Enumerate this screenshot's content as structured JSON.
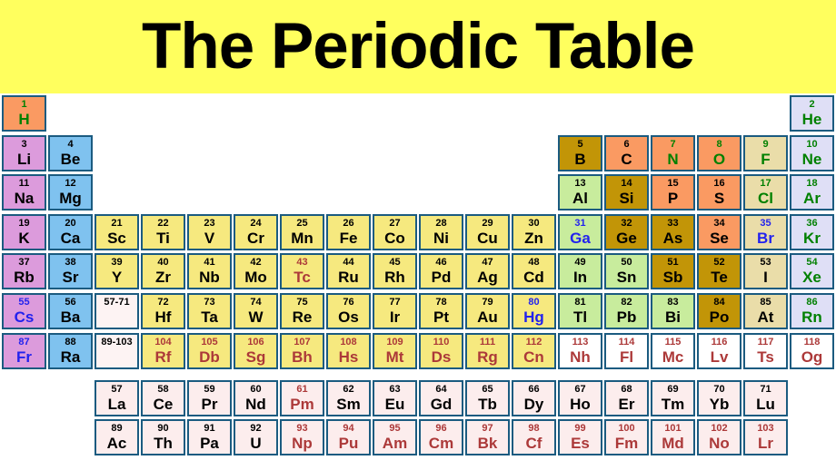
{
  "title": "The Periodic Table",
  "colors": {
    "banner_bg": "#FFFF5E",
    "border": "#1B5B80",
    "categories": {
      "alkali": "#DC9BDC",
      "alkaline": "#7FC2EF",
      "transition": "#F6E97F",
      "post": "#C8EC9D",
      "metalloid": "#C29507",
      "nonmetal": "#FA9A62",
      "halogen": "#EADDA9",
      "noble": "#DFDFF6",
      "fblock": "#FCEDED",
      "range": "#FDF3F3",
      "white": "#FFFFFF"
    },
    "text": {
      "black": "#000000",
      "green": "#008000",
      "blue": "#2222EE",
      "crimson": "#AC3939"
    }
  },
  "elements": [
    {
      "n": 1,
      "s": "H",
      "p": 1,
      "g": 1,
      "bg": "nonmetal",
      "fg": "green"
    },
    {
      "n": 2,
      "s": "He",
      "p": 1,
      "g": 18,
      "bg": "noble",
      "fg": "green"
    },
    {
      "n": 3,
      "s": "Li",
      "p": 2,
      "g": 1,
      "bg": "alkali",
      "fg": "black"
    },
    {
      "n": 4,
      "s": "Be",
      "p": 2,
      "g": 2,
      "bg": "alkaline",
      "fg": "black"
    },
    {
      "n": 5,
      "s": "B",
      "p": 2,
      "g": 13,
      "bg": "metalloid",
      "fg": "black"
    },
    {
      "n": 6,
      "s": "C",
      "p": 2,
      "g": 14,
      "bg": "nonmetal",
      "fg": "black"
    },
    {
      "n": 7,
      "s": "N",
      "p": 2,
      "g": 15,
      "bg": "nonmetal",
      "fg": "green"
    },
    {
      "n": 8,
      "s": "O",
      "p": 2,
      "g": 16,
      "bg": "nonmetal",
      "fg": "green"
    },
    {
      "n": 9,
      "s": "F",
      "p": 2,
      "g": 17,
      "bg": "halogen",
      "fg": "green"
    },
    {
      "n": 10,
      "s": "Ne",
      "p": 2,
      "g": 18,
      "bg": "noble",
      "fg": "green"
    },
    {
      "n": 11,
      "s": "Na",
      "p": 3,
      "g": 1,
      "bg": "alkali",
      "fg": "black"
    },
    {
      "n": 12,
      "s": "Mg",
      "p": 3,
      "g": 2,
      "bg": "alkaline",
      "fg": "black"
    },
    {
      "n": 13,
      "s": "Al",
      "p": 3,
      "g": 13,
      "bg": "post",
      "fg": "black"
    },
    {
      "n": 14,
      "s": "Si",
      "p": 3,
      "g": 14,
      "bg": "metalloid",
      "fg": "black"
    },
    {
      "n": 15,
      "s": "P",
      "p": 3,
      "g": 15,
      "bg": "nonmetal",
      "fg": "black"
    },
    {
      "n": 16,
      "s": "S",
      "p": 3,
      "g": 16,
      "bg": "nonmetal",
      "fg": "black"
    },
    {
      "n": 17,
      "s": "Cl",
      "p": 3,
      "g": 17,
      "bg": "halogen",
      "fg": "green"
    },
    {
      "n": 18,
      "s": "Ar",
      "p": 3,
      "g": 18,
      "bg": "noble",
      "fg": "green"
    },
    {
      "n": 19,
      "s": "K",
      "p": 4,
      "g": 1,
      "bg": "alkali",
      "fg": "black"
    },
    {
      "n": 20,
      "s": "Ca",
      "p": 4,
      "g": 2,
      "bg": "alkaline",
      "fg": "black"
    },
    {
      "n": 21,
      "s": "Sc",
      "p": 4,
      "g": 3,
      "bg": "transition",
      "fg": "black"
    },
    {
      "n": 22,
      "s": "Ti",
      "p": 4,
      "g": 4,
      "bg": "transition",
      "fg": "black"
    },
    {
      "n": 23,
      "s": "V",
      "p": 4,
      "g": 5,
      "bg": "transition",
      "fg": "black"
    },
    {
      "n": 24,
      "s": "Cr",
      "p": 4,
      "g": 6,
      "bg": "transition",
      "fg": "black"
    },
    {
      "n": 25,
      "s": "Mn",
      "p": 4,
      "g": 7,
      "bg": "transition",
      "fg": "black"
    },
    {
      "n": 26,
      "s": "Fe",
      "p": 4,
      "g": 8,
      "bg": "transition",
      "fg": "black"
    },
    {
      "n": 27,
      "s": "Co",
      "p": 4,
      "g": 9,
      "bg": "transition",
      "fg": "black"
    },
    {
      "n": 28,
      "s": "Ni",
      "p": 4,
      "g": 10,
      "bg": "transition",
      "fg": "black"
    },
    {
      "n": 29,
      "s": "Cu",
      "p": 4,
      "g": 11,
      "bg": "transition",
      "fg": "black"
    },
    {
      "n": 30,
      "s": "Zn",
      "p": 4,
      "g": 12,
      "bg": "transition",
      "fg": "black"
    },
    {
      "n": 31,
      "s": "Ga",
      "p": 4,
      "g": 13,
      "bg": "post",
      "fg": "blue"
    },
    {
      "n": 32,
      "s": "Ge",
      "p": 4,
      "g": 14,
      "bg": "metalloid",
      "fg": "black"
    },
    {
      "n": 33,
      "s": "As",
      "p": 4,
      "g": 15,
      "bg": "metalloid",
      "fg": "black"
    },
    {
      "n": 34,
      "s": "Se",
      "p": 4,
      "g": 16,
      "bg": "nonmetal",
      "fg": "black"
    },
    {
      "n": 35,
      "s": "Br",
      "p": 4,
      "g": 17,
      "bg": "halogen",
      "fg": "blue"
    },
    {
      "n": 36,
      "s": "Kr",
      "p": 4,
      "g": 18,
      "bg": "noble",
      "fg": "green"
    },
    {
      "n": 37,
      "s": "Rb",
      "p": 5,
      "g": 1,
      "bg": "alkali",
      "fg": "black"
    },
    {
      "n": 38,
      "s": "Sr",
      "p": 5,
      "g": 2,
      "bg": "alkaline",
      "fg": "black"
    },
    {
      "n": 39,
      "s": "Y",
      "p": 5,
      "g": 3,
      "bg": "transition",
      "fg": "black"
    },
    {
      "n": 40,
      "s": "Zr",
      "p": 5,
      "g": 4,
      "bg": "transition",
      "fg": "black"
    },
    {
      "n": 41,
      "s": "Nb",
      "p": 5,
      "g": 5,
      "bg": "transition",
      "fg": "black"
    },
    {
      "n": 42,
      "s": "Mo",
      "p": 5,
      "g": 6,
      "bg": "transition",
      "fg": "black"
    },
    {
      "n": 43,
      "s": "Tc",
      "p": 5,
      "g": 7,
      "bg": "transition",
      "fg": "crimson"
    },
    {
      "n": 44,
      "s": "Ru",
      "p": 5,
      "g": 8,
      "bg": "transition",
      "fg": "black"
    },
    {
      "n": 45,
      "s": "Rh",
      "p": 5,
      "g": 9,
      "bg": "transition",
      "fg": "black"
    },
    {
      "n": 46,
      "s": "Pd",
      "p": 5,
      "g": 10,
      "bg": "transition",
      "fg": "black"
    },
    {
      "n": 47,
      "s": "Ag",
      "p": 5,
      "g": 11,
      "bg": "transition",
      "fg": "black"
    },
    {
      "n": 48,
      "s": "Cd",
      "p": 5,
      "g": 12,
      "bg": "transition",
      "fg": "black"
    },
    {
      "n": 49,
      "s": "In",
      "p": 5,
      "g": 13,
      "bg": "post",
      "fg": "black"
    },
    {
      "n": 50,
      "s": "Sn",
      "p": 5,
      "g": 14,
      "bg": "post",
      "fg": "black"
    },
    {
      "n": 51,
      "s": "Sb",
      "p": 5,
      "g": 15,
      "bg": "metalloid",
      "fg": "black"
    },
    {
      "n": 52,
      "s": "Te",
      "p": 5,
      "g": 16,
      "bg": "metalloid",
      "fg": "black"
    },
    {
      "n": 53,
      "s": "I",
      "p": 5,
      "g": 17,
      "bg": "halogen",
      "fg": "black"
    },
    {
      "n": 54,
      "s": "Xe",
      "p": 5,
      "g": 18,
      "bg": "noble",
      "fg": "green"
    },
    {
      "n": 55,
      "s": "Cs",
      "p": 6,
      "g": 1,
      "bg": "alkali",
      "fg": "blue"
    },
    {
      "n": 56,
      "s": "Ba",
      "p": 6,
      "g": 2,
      "bg": "alkaline",
      "fg": "black"
    },
    {
      "n": 72,
      "s": "Hf",
      "p": 6,
      "g": 4,
      "bg": "transition",
      "fg": "black"
    },
    {
      "n": 73,
      "s": "Ta",
      "p": 6,
      "g": 5,
      "bg": "transition",
      "fg": "black"
    },
    {
      "n": 74,
      "s": "W",
      "p": 6,
      "g": 6,
      "bg": "transition",
      "fg": "black"
    },
    {
      "n": 75,
      "s": "Re",
      "p": 6,
      "g": 7,
      "bg": "transition",
      "fg": "black"
    },
    {
      "n": 76,
      "s": "Os",
      "p": 6,
      "g": 8,
      "bg": "transition",
      "fg": "black"
    },
    {
      "n": 77,
      "s": "Ir",
      "p": 6,
      "g": 9,
      "bg": "transition",
      "fg": "black"
    },
    {
      "n": 78,
      "s": "Pt",
      "p": 6,
      "g": 10,
      "bg": "transition",
      "fg": "black"
    },
    {
      "n": 79,
      "s": "Au",
      "p": 6,
      "g": 11,
      "bg": "transition",
      "fg": "black"
    },
    {
      "n": 80,
      "s": "Hg",
      "p": 6,
      "g": 12,
      "bg": "transition",
      "fg": "blue"
    },
    {
      "n": 81,
      "s": "Tl",
      "p": 6,
      "g": 13,
      "bg": "post",
      "fg": "black"
    },
    {
      "n": 82,
      "s": "Pb",
      "p": 6,
      "g": 14,
      "bg": "post",
      "fg": "black"
    },
    {
      "n": 83,
      "s": "Bi",
      "p": 6,
      "g": 15,
      "bg": "post",
      "fg": "black"
    },
    {
      "n": 84,
      "s": "Po",
      "p": 6,
      "g": 16,
      "bg": "metalloid",
      "fg": "black"
    },
    {
      "n": 85,
      "s": "At",
      "p": 6,
      "g": 17,
      "bg": "halogen",
      "fg": "black"
    },
    {
      "n": 86,
      "s": "Rn",
      "p": 6,
      "g": 18,
      "bg": "noble",
      "fg": "green"
    },
    {
      "n": 87,
      "s": "Fr",
      "p": 7,
      "g": 1,
      "bg": "alkali",
      "fg": "blue"
    },
    {
      "n": 88,
      "s": "Ra",
      "p": 7,
      "g": 2,
      "bg": "alkaline",
      "fg": "black"
    },
    {
      "n": 104,
      "s": "Rf",
      "p": 7,
      "g": 4,
      "bg": "transition",
      "fg": "crimson"
    },
    {
      "n": 105,
      "s": "Db",
      "p": 7,
      "g": 5,
      "bg": "transition",
      "fg": "crimson"
    },
    {
      "n": 106,
      "s": "Sg",
      "p": 7,
      "g": 6,
      "bg": "transition",
      "fg": "crimson"
    },
    {
      "n": 107,
      "s": "Bh",
      "p": 7,
      "g": 7,
      "bg": "transition",
      "fg": "crimson"
    },
    {
      "n": 108,
      "s": "Hs",
      "p": 7,
      "g": 8,
      "bg": "transition",
      "fg": "crimson"
    },
    {
      "n": 109,
      "s": "Mt",
      "p": 7,
      "g": 9,
      "bg": "transition",
      "fg": "crimson"
    },
    {
      "n": 110,
      "s": "Ds",
      "p": 7,
      "g": 10,
      "bg": "transition",
      "fg": "crimson"
    },
    {
      "n": 111,
      "s": "Rg",
      "p": 7,
      "g": 11,
      "bg": "transition",
      "fg": "crimson"
    },
    {
      "n": 112,
      "s": "Cn",
      "p": 7,
      "g": 12,
      "bg": "transition",
      "fg": "crimson"
    },
    {
      "n": 113,
      "s": "Nh",
      "p": 7,
      "g": 13,
      "bg": "white",
      "fg": "crimson"
    },
    {
      "n": 114,
      "s": "Fl",
      "p": 7,
      "g": 14,
      "bg": "white",
      "fg": "crimson"
    },
    {
      "n": 115,
      "s": "Mc",
      "p": 7,
      "g": 15,
      "bg": "white",
      "fg": "crimson"
    },
    {
      "n": 116,
      "s": "Lv",
      "p": 7,
      "g": 16,
      "bg": "white",
      "fg": "crimson"
    },
    {
      "n": 117,
      "s": "Ts",
      "p": 7,
      "g": 17,
      "bg": "white",
      "fg": "crimson"
    },
    {
      "n": 118,
      "s": "Og",
      "p": 7,
      "g": 18,
      "bg": "white",
      "fg": "crimson"
    }
  ],
  "placeholders": [
    {
      "label": "57-71",
      "p": 6,
      "g": 3
    },
    {
      "label": "89-103",
      "p": 7,
      "g": 3
    }
  ],
  "lanthanides": [
    {
      "n": 57,
      "s": "La",
      "bg": "fblock",
      "fg": "black"
    },
    {
      "n": 58,
      "s": "Ce",
      "bg": "fblock",
      "fg": "black"
    },
    {
      "n": 59,
      "s": "Pr",
      "bg": "fblock",
      "fg": "black"
    },
    {
      "n": 60,
      "s": "Nd",
      "bg": "fblock",
      "fg": "black"
    },
    {
      "n": 61,
      "s": "Pm",
      "bg": "fblock",
      "fg": "crimson"
    },
    {
      "n": 62,
      "s": "Sm",
      "bg": "fblock",
      "fg": "black"
    },
    {
      "n": 63,
      "s": "Eu",
      "bg": "fblock",
      "fg": "black"
    },
    {
      "n": 64,
      "s": "Gd",
      "bg": "fblock",
      "fg": "black"
    },
    {
      "n": 65,
      "s": "Tb",
      "bg": "fblock",
      "fg": "black"
    },
    {
      "n": 66,
      "s": "Dy",
      "bg": "fblock",
      "fg": "black"
    },
    {
      "n": 67,
      "s": "Ho",
      "bg": "fblock",
      "fg": "black"
    },
    {
      "n": 68,
      "s": "Er",
      "bg": "fblock",
      "fg": "black"
    },
    {
      "n": 69,
      "s": "Tm",
      "bg": "fblock",
      "fg": "black"
    },
    {
      "n": 70,
      "s": "Yb",
      "bg": "fblock",
      "fg": "black"
    },
    {
      "n": 71,
      "s": "Lu",
      "bg": "fblock",
      "fg": "black"
    }
  ],
  "actinides": [
    {
      "n": 89,
      "s": "Ac",
      "bg": "fblock",
      "fg": "black"
    },
    {
      "n": 90,
      "s": "Th",
      "bg": "fblock",
      "fg": "black"
    },
    {
      "n": 91,
      "s": "Pa",
      "bg": "fblock",
      "fg": "black"
    },
    {
      "n": 92,
      "s": "U",
      "bg": "fblock",
      "fg": "black"
    },
    {
      "n": 93,
      "s": "Np",
      "bg": "fblock",
      "fg": "crimson"
    },
    {
      "n": 94,
      "s": "Pu",
      "bg": "fblock",
      "fg": "crimson"
    },
    {
      "n": 95,
      "s": "Am",
      "bg": "fblock",
      "fg": "crimson"
    },
    {
      "n": 96,
      "s": "Cm",
      "bg": "fblock",
      "fg": "crimson"
    },
    {
      "n": 97,
      "s": "Bk",
      "bg": "fblock",
      "fg": "crimson"
    },
    {
      "n": 98,
      "s": "Cf",
      "bg": "fblock",
      "fg": "crimson"
    },
    {
      "n": 99,
      "s": "Es",
      "bg": "fblock",
      "fg": "crimson"
    },
    {
      "n": 100,
      "s": "Fm",
      "bg": "fblock",
      "fg": "crimson"
    },
    {
      "n": 101,
      "s": "Md",
      "bg": "fblock",
      "fg": "crimson"
    },
    {
      "n": 102,
      "s": "No",
      "bg": "fblock",
      "fg": "crimson"
    },
    {
      "n": 103,
      "s": "Lr",
      "bg": "fblock",
      "fg": "crimson"
    }
  ]
}
